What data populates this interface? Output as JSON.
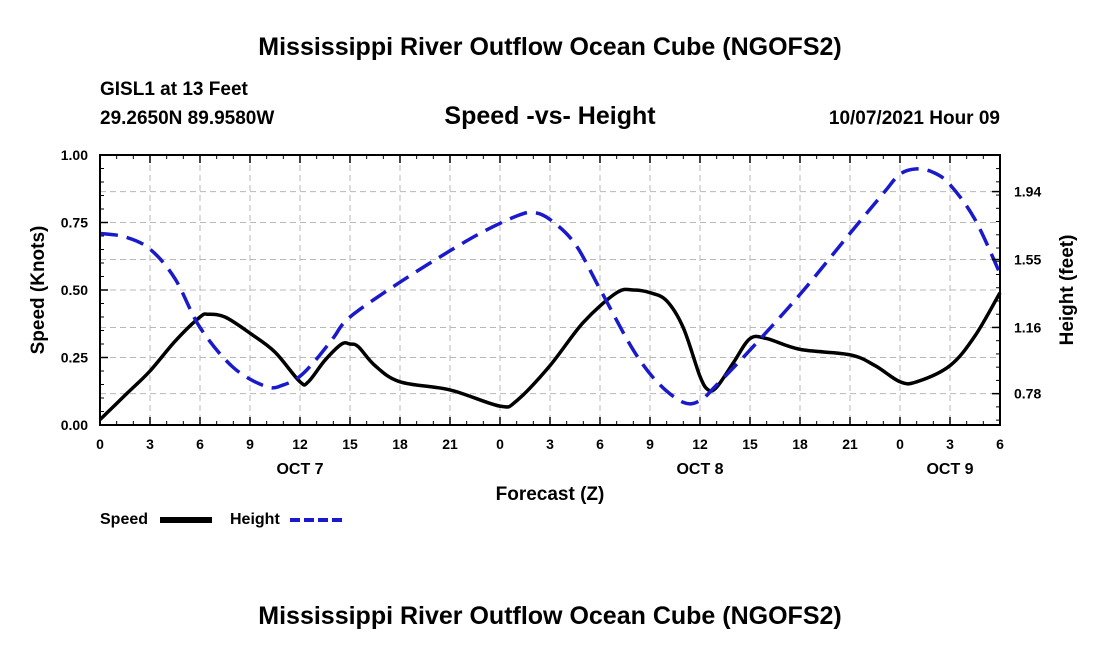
{
  "header": {
    "title": "Mississippi River Outflow Ocean Cube (NGOFS2)",
    "station": "GISL1 at 13 Feet",
    "coords": "29.2650N  89.9580W",
    "chart_title": "Speed -vs- Height",
    "datetime": "10/07/2021 Hour 09"
  },
  "footer": {
    "title": "Mississippi River Outflow Ocean Cube (NGOFS2)"
  },
  "legend": {
    "speed_label": "Speed",
    "height_label": "Height"
  },
  "colors": {
    "speed": "#000000",
    "height": "#1a1acc",
    "grid": "#b8b8b8"
  },
  "chart_data": {
    "type": "line",
    "title": "Speed -vs- Height",
    "xlabel": "Forecast (Z)",
    "ylabel": "Speed (Knots)",
    "y2label": "Height (feet)",
    "xlim": [
      0,
      54
    ],
    "ylim": [
      0,
      1
    ],
    "y2lim": [
      0.6,
      2.15
    ],
    "yticks": [
      "0.00",
      "0.25",
      "0.50",
      "0.75",
      "1.00"
    ],
    "ytick_values": [
      0,
      0.25,
      0.5,
      0.75,
      1.0
    ],
    "y2ticks": [
      "0.78",
      "1.16",
      "1.55",
      "1.94"
    ],
    "y2tick_values": [
      0.78,
      1.16,
      1.55,
      1.94
    ],
    "xticks": [
      "0",
      "3",
      "6",
      "9",
      "12",
      "15",
      "18",
      "21",
      "0",
      "3",
      "6",
      "9",
      "12",
      "15",
      "18",
      "21",
      "0",
      "3",
      "6"
    ],
    "xtick_values": [
      0,
      3,
      6,
      9,
      12,
      15,
      18,
      21,
      24,
      27,
      30,
      33,
      36,
      39,
      42,
      45,
      48,
      51,
      54
    ],
    "day_labels": [
      {
        "label": "OCT 7",
        "x": 12
      },
      {
        "label": "OCT 8",
        "x": 36
      },
      {
        "label": "OCT 9",
        "x": 51
      }
    ],
    "series": [
      {
        "name": "Speed",
        "axis": "left",
        "x": [
          0,
          1.5,
          3,
          4.5,
          6,
          6.5,
          7.5,
          9,
          10.5,
          12,
          12.5,
          13.5,
          14.5,
          15,
          15.5,
          16.5,
          18,
          21,
          24,
          25,
          27,
          29,
          31,
          32,
          33,
          34,
          35,
          36,
          36.5,
          37,
          38,
          39,
          40,
          42,
          45,
          46.5,
          48,
          49,
          51,
          52.5,
          54
        ],
        "values": [
          0.02,
          0.11,
          0.2,
          0.31,
          0.4,
          0.41,
          0.4,
          0.34,
          0.27,
          0.16,
          0.16,
          0.24,
          0.3,
          0.3,
          0.29,
          0.22,
          0.16,
          0.13,
          0.07,
          0.09,
          0.22,
          0.38,
          0.49,
          0.5,
          0.49,
          0.46,
          0.36,
          0.18,
          0.13,
          0.14,
          0.23,
          0.32,
          0.32,
          0.28,
          0.26,
          0.22,
          0.16,
          0.16,
          0.22,
          0.33,
          0.49
        ]
      },
      {
        "name": "Height",
        "axis": "right",
        "x": [
          0,
          1.5,
          3,
          4.5,
          6,
          8,
          10,
          11,
          12,
          13,
          14,
          15,
          18,
          21,
          23,
          25,
          26,
          27,
          28.5,
          30,
          32,
          33.5,
          35,
          36,
          37,
          39,
          42,
          45,
          47,
          48,
          49,
          50,
          51,
          52.5,
          54
        ],
        "values": [
          1.7,
          1.68,
          1.61,
          1.44,
          1.16,
          0.93,
          0.82,
          0.83,
          0.88,
          0.98,
          1.1,
          1.22,
          1.42,
          1.6,
          1.71,
          1.8,
          1.82,
          1.78,
          1.64,
          1.38,
          1.03,
          0.84,
          0.73,
          0.74,
          0.83,
          1.03,
          1.35,
          1.7,
          1.93,
          2.04,
          2.07,
          2.05,
          1.98,
          1.78,
          1.47
        ]
      }
    ]
  }
}
